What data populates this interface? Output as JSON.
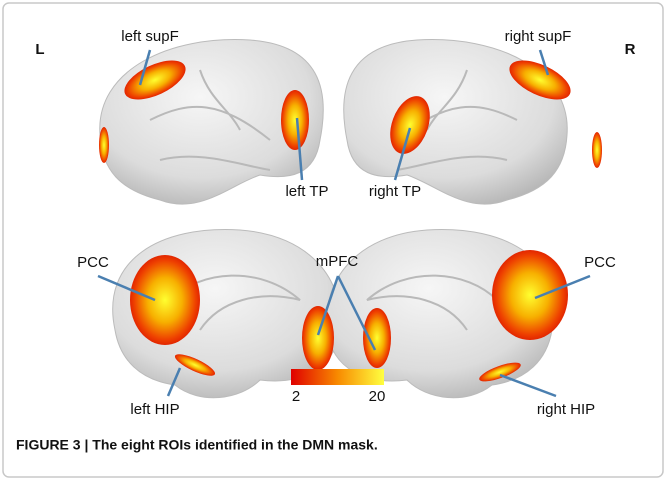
{
  "figure": {
    "hemisphere_labels": [
      "L",
      "R"
    ],
    "roi_labels": [
      "left supF",
      "right supF",
      "left TP",
      "right TP",
      "PCC",
      "mPFC",
      "PCC",
      "left HIP",
      "right HIP"
    ],
    "colorbar": {
      "min": "2",
      "max": "20"
    },
    "caption": "FIGURE 3 | The eight ROIs identified in the DMN mask."
  }
}
